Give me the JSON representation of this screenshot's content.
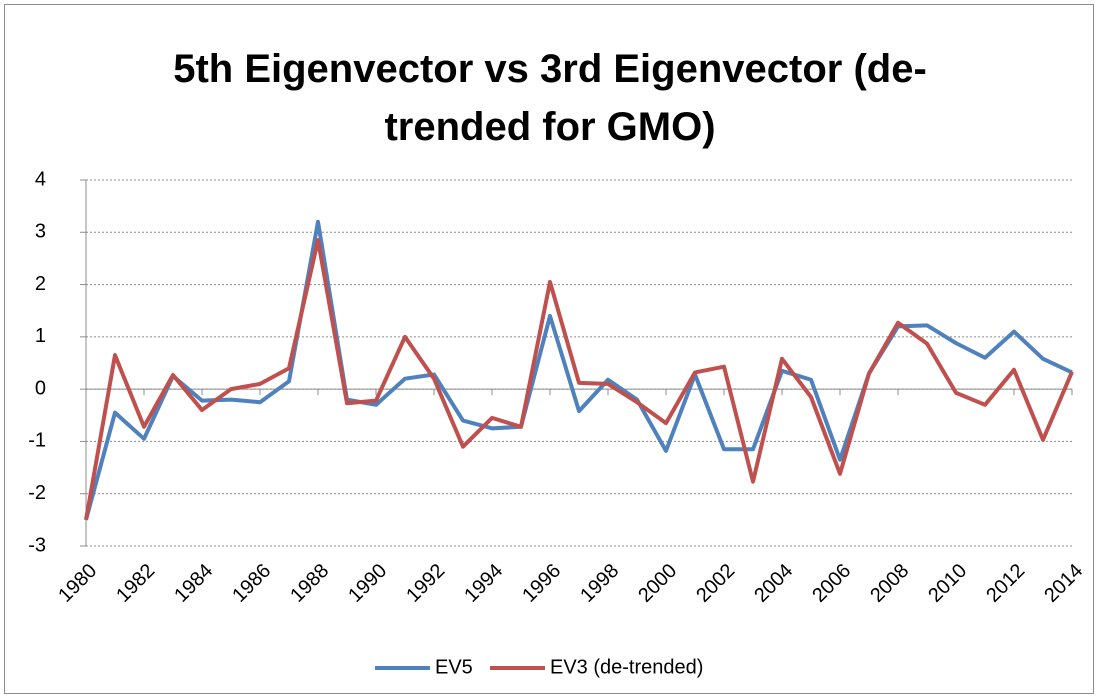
{
  "chart_data": {
    "type": "line",
    "title": "5th Eigenvector vs 3rd Eigenvector (de-trended for GMO)",
    "x": [
      1980,
      1981,
      1982,
      1983,
      1984,
      1985,
      1986,
      1987,
      1988,
      1989,
      1990,
      1991,
      1992,
      1993,
      1994,
      1995,
      1996,
      1997,
      1998,
      1999,
      2000,
      2001,
      2002,
      2003,
      2004,
      2005,
      2006,
      2007,
      2008,
      2009,
      2010,
      2011,
      2012,
      2013,
      2014
    ],
    "series": [
      {
        "name": "EV5",
        "color": "#4f81bd",
        "values": [
          -2.5,
          -0.45,
          -0.95,
          0.25,
          -0.22,
          -0.2,
          -0.25,
          0.15,
          3.2,
          -0.2,
          -0.3,
          0.2,
          0.28,
          -0.6,
          -0.75,
          -0.72,
          1.4,
          -0.42,
          0.18,
          -0.2,
          -1.18,
          0.28,
          -1.15,
          -1.15,
          0.35,
          0.18,
          -1.35,
          0.3,
          1.2,
          1.22,
          0.88,
          0.6,
          1.1,
          0.58,
          0.32
        ]
      },
      {
        "name": "EV3 (de-trended)",
        "color": "#c0504d",
        "values": [
          -2.5,
          0.65,
          -0.72,
          0.27,
          -0.4,
          0.0,
          0.1,
          0.4,
          2.85,
          -0.27,
          -0.22,
          1.0,
          0.2,
          -1.1,
          -0.55,
          -0.72,
          2.05,
          0.12,
          0.1,
          -0.25,
          -0.65,
          0.32,
          0.43,
          -1.77,
          0.58,
          -0.15,
          -1.62,
          0.3,
          1.27,
          0.87,
          -0.07,
          -0.3,
          0.37,
          -0.97,
          0.33
        ]
      }
    ],
    "xlim": [
      1980,
      2014
    ],
    "xticks": [
      1980,
      1982,
      1984,
      1986,
      1988,
      1990,
      1992,
      1994,
      1996,
      1998,
      2000,
      2002,
      2004,
      2006,
      2008,
      2010,
      2012,
      2014
    ],
    "ylim": [
      -3,
      4
    ],
    "yticks": [
      -3,
      -2,
      -1,
      0,
      1,
      2,
      3,
      4
    ],
    "grid": true,
    "legend": "bottom"
  }
}
